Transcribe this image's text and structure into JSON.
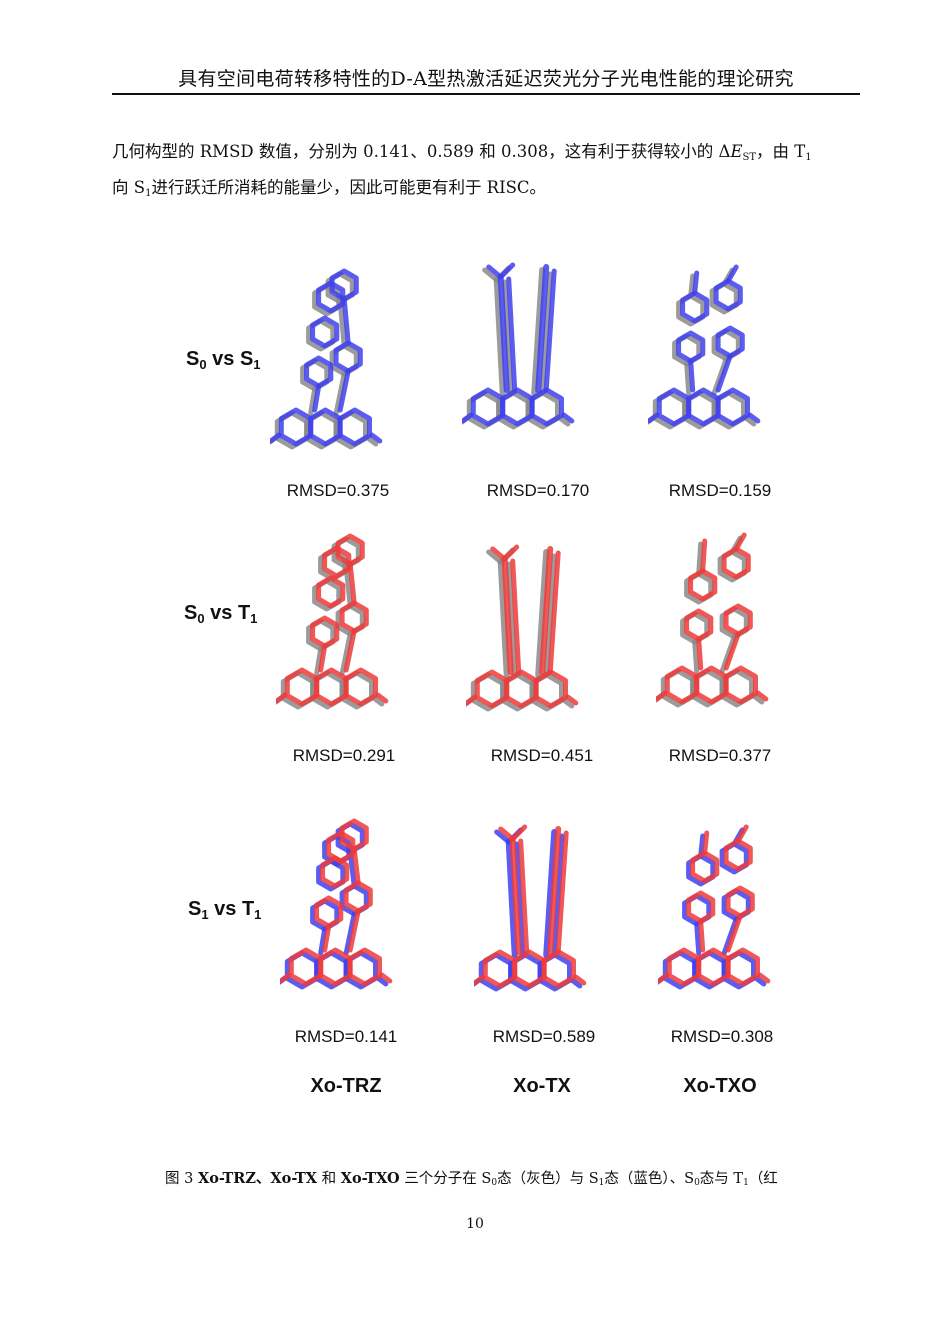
{
  "header": {
    "title": "具有空间电荷转移特性的D-A型热激活延迟荧光分子光电性能的理论研究"
  },
  "paragraph": {
    "line1_pre": "几何构型的 RMSD 数值，分别为 0.141、0.589 和 0.308，这有利于获得较小的 Δ",
    "line1_E": "E",
    "line1_sub": "ST",
    "line1_post": "，由 T",
    "line1_sub2": "1",
    "line2_pre": "向 S",
    "line2_sub": "1",
    "line2_post": "进行跃迁所消耗的能量少，因此可能更有利于 RISC。"
  },
  "figure": {
    "rows": [
      {
        "label_a": "S",
        "sub_a": "0",
        "vs": " vs ",
        "label_b": "S",
        "sub_b": "1",
        "rmsd": [
          "RMSD=0.375",
          "RMSD=0.170",
          "RMSD=0.159"
        ],
        "colors": [
          "#8a8a8a",
          "#4040ee"
        ]
      },
      {
        "label_a": "S",
        "sub_a": "0",
        "vs": " vs ",
        "label_b": "T",
        "sub_b": "1",
        "rmsd": [
          "RMSD=0.291",
          "RMSD=0.451",
          "RMSD=0.377"
        ],
        "colors": [
          "#8a8a8a",
          "#ee3a3a"
        ]
      },
      {
        "label_a": "S",
        "sub_a": "1",
        "vs": " vs ",
        "label_b": "T",
        "sub_b": "1",
        "rmsd": [
          "RMSD=0.141",
          "RMSD=0.589",
          "RMSD=0.308"
        ],
        "colors": [
          "#4040ee",
          "#ee3a3a"
        ]
      }
    ],
    "molecules": [
      "Xo-TRZ",
      "Xo-TX",
      "Xo-TXO"
    ]
  },
  "caption": {
    "prefix": "图  3  ",
    "m1": "Xo-TRZ",
    "sep1": "、",
    "m2": "Xo-TX",
    "and": " 和 ",
    "m3": "Xo-TXO",
    "t1": " 三个分子在 S",
    "s1": "0",
    "t2": "态（灰色）与 S",
    "s2": "1",
    "t3": "态（蓝色）、S",
    "s3": "0",
    "t4": "态与 T",
    "s4": "1",
    "t5": "（红"
  },
  "page_number": "10"
}
